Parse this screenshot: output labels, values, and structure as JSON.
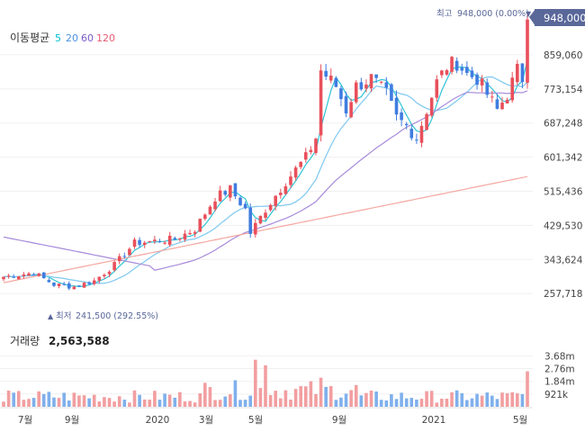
{
  "moving_average": {
    "label": "이동평균",
    "periods": [
      {
        "text": "5",
        "color": "#00bcd4"
      },
      {
        "text": "20",
        "color": "#4a90e2"
      },
      {
        "text": "60",
        "color": "#7b5cc6"
      },
      {
        "text": "120",
        "color": "#e85a71"
      }
    ]
  },
  "high_marker": {
    "label": "최고",
    "value_text": "948,000 (0.00%)",
    "arrow": "▼"
  },
  "low_marker": {
    "label": "최저",
    "value_text": "241,500 (292.55%)",
    "arrow": "▲"
  },
  "current_price": "948,000",
  "volume_label": {
    "label": "거래량",
    "value": "2,563,588"
  },
  "volume_ticks": [
    "3.68m",
    "2.76m",
    "1.84m",
    "921k"
  ],
  "colors": {
    "up": "#e8505b",
    "down": "#3f7de0",
    "current_badge": "#5a6799",
    "ma5": "#2ec4d6",
    "ma20": "#7ec8f0",
    "ma60": "#a78bdb",
    "ma120": "#f5a7a0",
    "volume_up": "#f29ea0",
    "volume_down": "#7fb0ec"
  },
  "chart_data": {
    "type": "candlestick",
    "price_axis": {
      "ticks": [
        "859,060",
        "773,154",
        "687,248",
        "601,342",
        "515,436",
        "429,530",
        "343,624",
        "257,718"
      ],
      "range": [
        215000,
        970000
      ]
    },
    "time_axis": [
      "7월",
      "9월",
      "2020",
      "3월",
      "5월",
      "9월",
      "2021",
      "5월"
    ],
    "high": 948000,
    "low": 241500,
    "ma_periods": [
      5,
      20,
      60,
      120
    ],
    "volume_axis": {
      "ticks": [
        3680000,
        2760000,
        1840000,
        921000
      ]
    }
  }
}
